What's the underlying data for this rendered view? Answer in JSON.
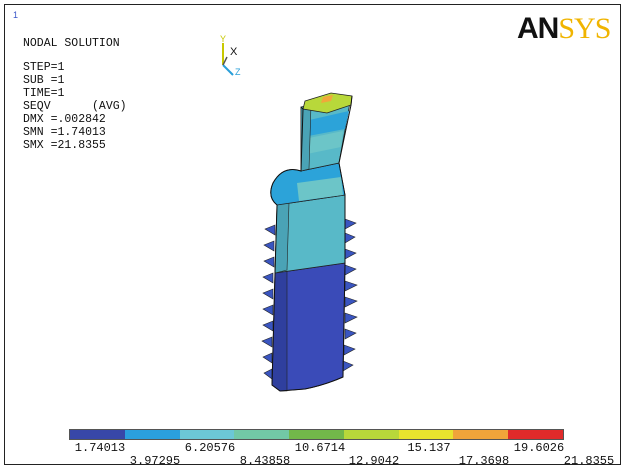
{
  "window_index": "1",
  "info_lines": [
    "NODAL SOLUTION",
    "",
    "STEP=1",
    "SUB =1",
    "TIME=1",
    "SEQV      (AVG)",
    "DMX =.002842",
    "SMN =1.74013",
    "SMX =21.8355"
  ],
  "logo": {
    "an": "AN",
    "sys": "SYS"
  },
  "triad": {
    "y": "Y",
    "x": "X",
    "z": "Z"
  },
  "legend": {
    "colors": [
      "#3847a8",
      "#2b9fde",
      "#6cc7d6",
      "#72c8a6",
      "#72b84a",
      "#b8d83a",
      "#e8e42e",
      "#f0a43a",
      "#e02a2a"
    ],
    "labels_top": [
      "1.74013",
      "6.20576",
      "10.6714",
      "15.137",
      "19.6026"
    ],
    "labels_bottom": [
      "3.97295",
      "8.43858",
      "12.9042",
      "17.3698",
      "21.8355"
    ]
  },
  "colors": {
    "shank": "#3a4bb8",
    "body": "#58b9c8",
    "collar": "#2ca3d9",
    "collar_alt": "#6cc5c8",
    "top": "#b8d83a",
    "top_hot": "#f0a83a"
  }
}
